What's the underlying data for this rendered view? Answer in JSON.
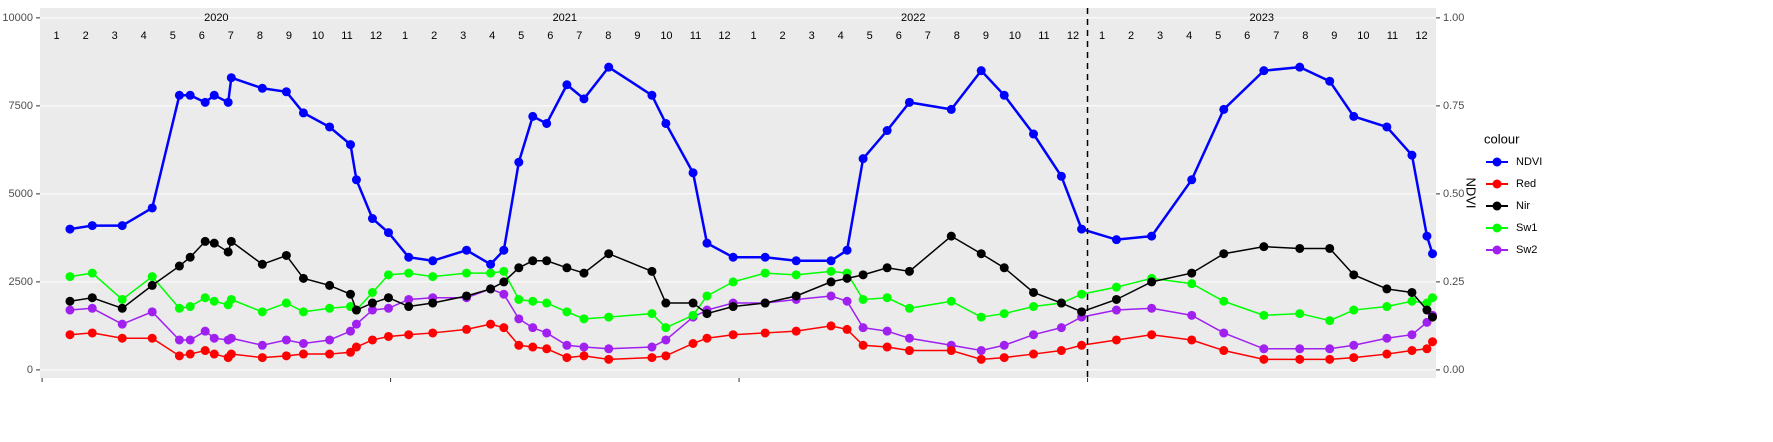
{
  "chart_data": {
    "type": "line",
    "y2_label": "NDVI",
    "legend_title": "colour",
    "legend_position": "right",
    "grid": true,
    "xlim": [
      2019.994,
      2024.0
    ],
    "xticks": [
      {
        "value": 2020,
        "label": "2020"
      },
      {
        "value": 2021,
        "label": "2021"
      },
      {
        "value": 2022,
        "label": "2022"
      },
      {
        "value": 2023,
        "label": "2023"
      }
    ],
    "month_labels": [
      "1",
      "2",
      "3",
      "4",
      "5",
      "6",
      "7",
      "8",
      "9",
      "10",
      "11",
      "12"
    ],
    "vline": 2023,
    "ylim": [
      -230,
      10280
    ],
    "yticks": [
      0,
      2500,
      5000,
      7500,
      10000
    ],
    "y2lim": [
      -0.023,
      1.028
    ],
    "y2ticks": [
      {
        "value": 0,
        "label": "0.00"
      },
      {
        "value": 0.25,
        "label": "0.25"
      },
      {
        "value": 0.5,
        "label": "0.50"
      },
      {
        "value": 0.75,
        "label": "0.75"
      },
      {
        "value": 1,
        "label": "1.00"
      }
    ],
    "x": [
      2020.08,
      2020.144,
      2020.23,
      2020.316,
      2020.394,
      2020.425,
      2020.468,
      2020.494,
      2020.534,
      2020.543,
      2020.632,
      2020.701,
      2020.75,
      2020.825,
      2020.885,
      2020.902,
      2020.948,
      2020.994,
      2021.052,
      2021.121,
      2021.218,
      2021.287,
      2021.325,
      2021.368,
      2021.408,
      2021.448,
      2021.506,
      2021.555,
      2021.626,
      2021.75,
      2021.79,
      2021.868,
      2021.908,
      2021.983,
      2022.075,
      2022.164,
      2022.264,
      2022.31,
      2022.356,
      2022.425,
      2022.489,
      2022.609,
      2022.695,
      2022.761,
      2022.845,
      2022.925,
      2022.983,
      2023.083,
      2023.184,
      2023.299,
      2023.391,
      2023.506,
      2023.609,
      2023.695,
      2023.764,
      2023.859,
      2023.931,
      2023.974,
      2023.99
    ],
    "series": [
      {
        "name": "NDVI",
        "color": "#0000FF",
        "axis": "y2",
        "values": [
          0.4,
          0.41,
          0.41,
          0.46,
          0.78,
          0.78,
          0.76,
          0.78,
          0.76,
          0.83,
          0.8,
          0.79,
          0.73,
          0.69,
          0.64,
          0.54,
          0.43,
          0.39,
          0.32,
          0.31,
          0.34,
          0.3,
          0.34,
          0.59,
          0.72,
          0.7,
          0.81,
          0.77,
          0.86,
          0.78,
          0.7,
          0.56,
          0.36,
          0.32,
          0.32,
          0.31,
          0.31,
          0.34,
          0.6,
          0.68,
          0.76,
          0.74,
          0.85,
          0.78,
          0.67,
          0.55,
          0.4,
          0.37,
          0.38,
          0.54,
          0.74,
          0.85,
          0.86,
          0.82,
          0.72,
          0.69,
          0.61,
          0.38,
          0.33
        ]
      },
      {
        "name": "Red",
        "color": "#FF0000",
        "values": [
          1000,
          1050,
          900,
          900,
          400,
          450,
          550,
          450,
          350,
          450,
          350,
          400,
          450,
          450,
          500,
          650,
          850,
          950,
          1000,
          1050,
          1150,
          1300,
          1200,
          700,
          650,
          600,
          350,
          400,
          300,
          350,
          400,
          750,
          900,
          1000,
          1050,
          1100,
          1250,
          1150,
          700,
          650,
          550,
          550,
          300,
          350,
          450,
          550,
          700,
          850,
          1000,
          850,
          550,
          300,
          300,
          300,
          350,
          450,
          550,
          600,
          800
        ]
      },
      {
        "name": "Nir",
        "color": "#000000",
        "values": [
          1950,
          2050,
          1750,
          2400,
          2950,
          3200,
          3650,
          3600,
          3350,
          3650,
          3000,
          3250,
          2600,
          2400,
          2150,
          1700,
          1900,
          2050,
          1800,
          1900,
          2100,
          2300,
          2500,
          2900,
          3100,
          3100,
          2900,
          2750,
          3300,
          2800,
          1900,
          1900,
          1600,
          1800,
          1900,
          2100,
          2500,
          2600,
          2700,
          2900,
          2800,
          3800,
          3300,
          2900,
          2200,
          1900,
          1650,
          2000,
          2500,
          2750,
          3300,
          3500,
          3450,
          3450,
          2700,
          2300,
          2200,
          1700,
          1500
        ]
      },
      {
        "name": "Sw1",
        "color": "#00FF00",
        "values": [
          2650,
          2750,
          2000,
          2650,
          1750,
          1800,
          2050,
          1950,
          1850,
          2000,
          1650,
          1900,
          1650,
          1750,
          1800,
          1700,
          2200,
          2700,
          2750,
          2650,
          2750,
          2750,
          2800,
          2000,
          1950,
          1900,
          1650,
          1450,
          1500,
          1600,
          1200,
          1550,
          2100,
          2500,
          2750,
          2700,
          2800,
          2750,
          2000,
          2050,
          1750,
          1950,
          1500,
          1600,
          1800,
          1900,
          2150,
          2350,
          2600,
          2450,
          1950,
          1550,
          1600,
          1400,
          1700,
          1800,
          1950,
          1900,
          2050
        ]
      },
      {
        "name": "Sw2",
        "color": "#A020F0",
        "values": [
          1700,
          1750,
          1300,
          1650,
          850,
          850,
          1100,
          900,
          850,
          900,
          700,
          850,
          750,
          850,
          1100,
          1300,
          1700,
          1750,
          2000,
          2050,
          2050,
          2300,
          2150,
          1450,
          1200,
          1050,
          700,
          650,
          600,
          650,
          850,
          1500,
          1700,
          1900,
          1900,
          2000,
          2100,
          1950,
          1200,
          1100,
          900,
          700,
          550,
          700,
          1000,
          1200,
          1500,
          1700,
          1750,
          1550,
          1050,
          600,
          600,
          600,
          700,
          900,
          1000,
          1350,
          1550
        ]
      }
    ]
  }
}
